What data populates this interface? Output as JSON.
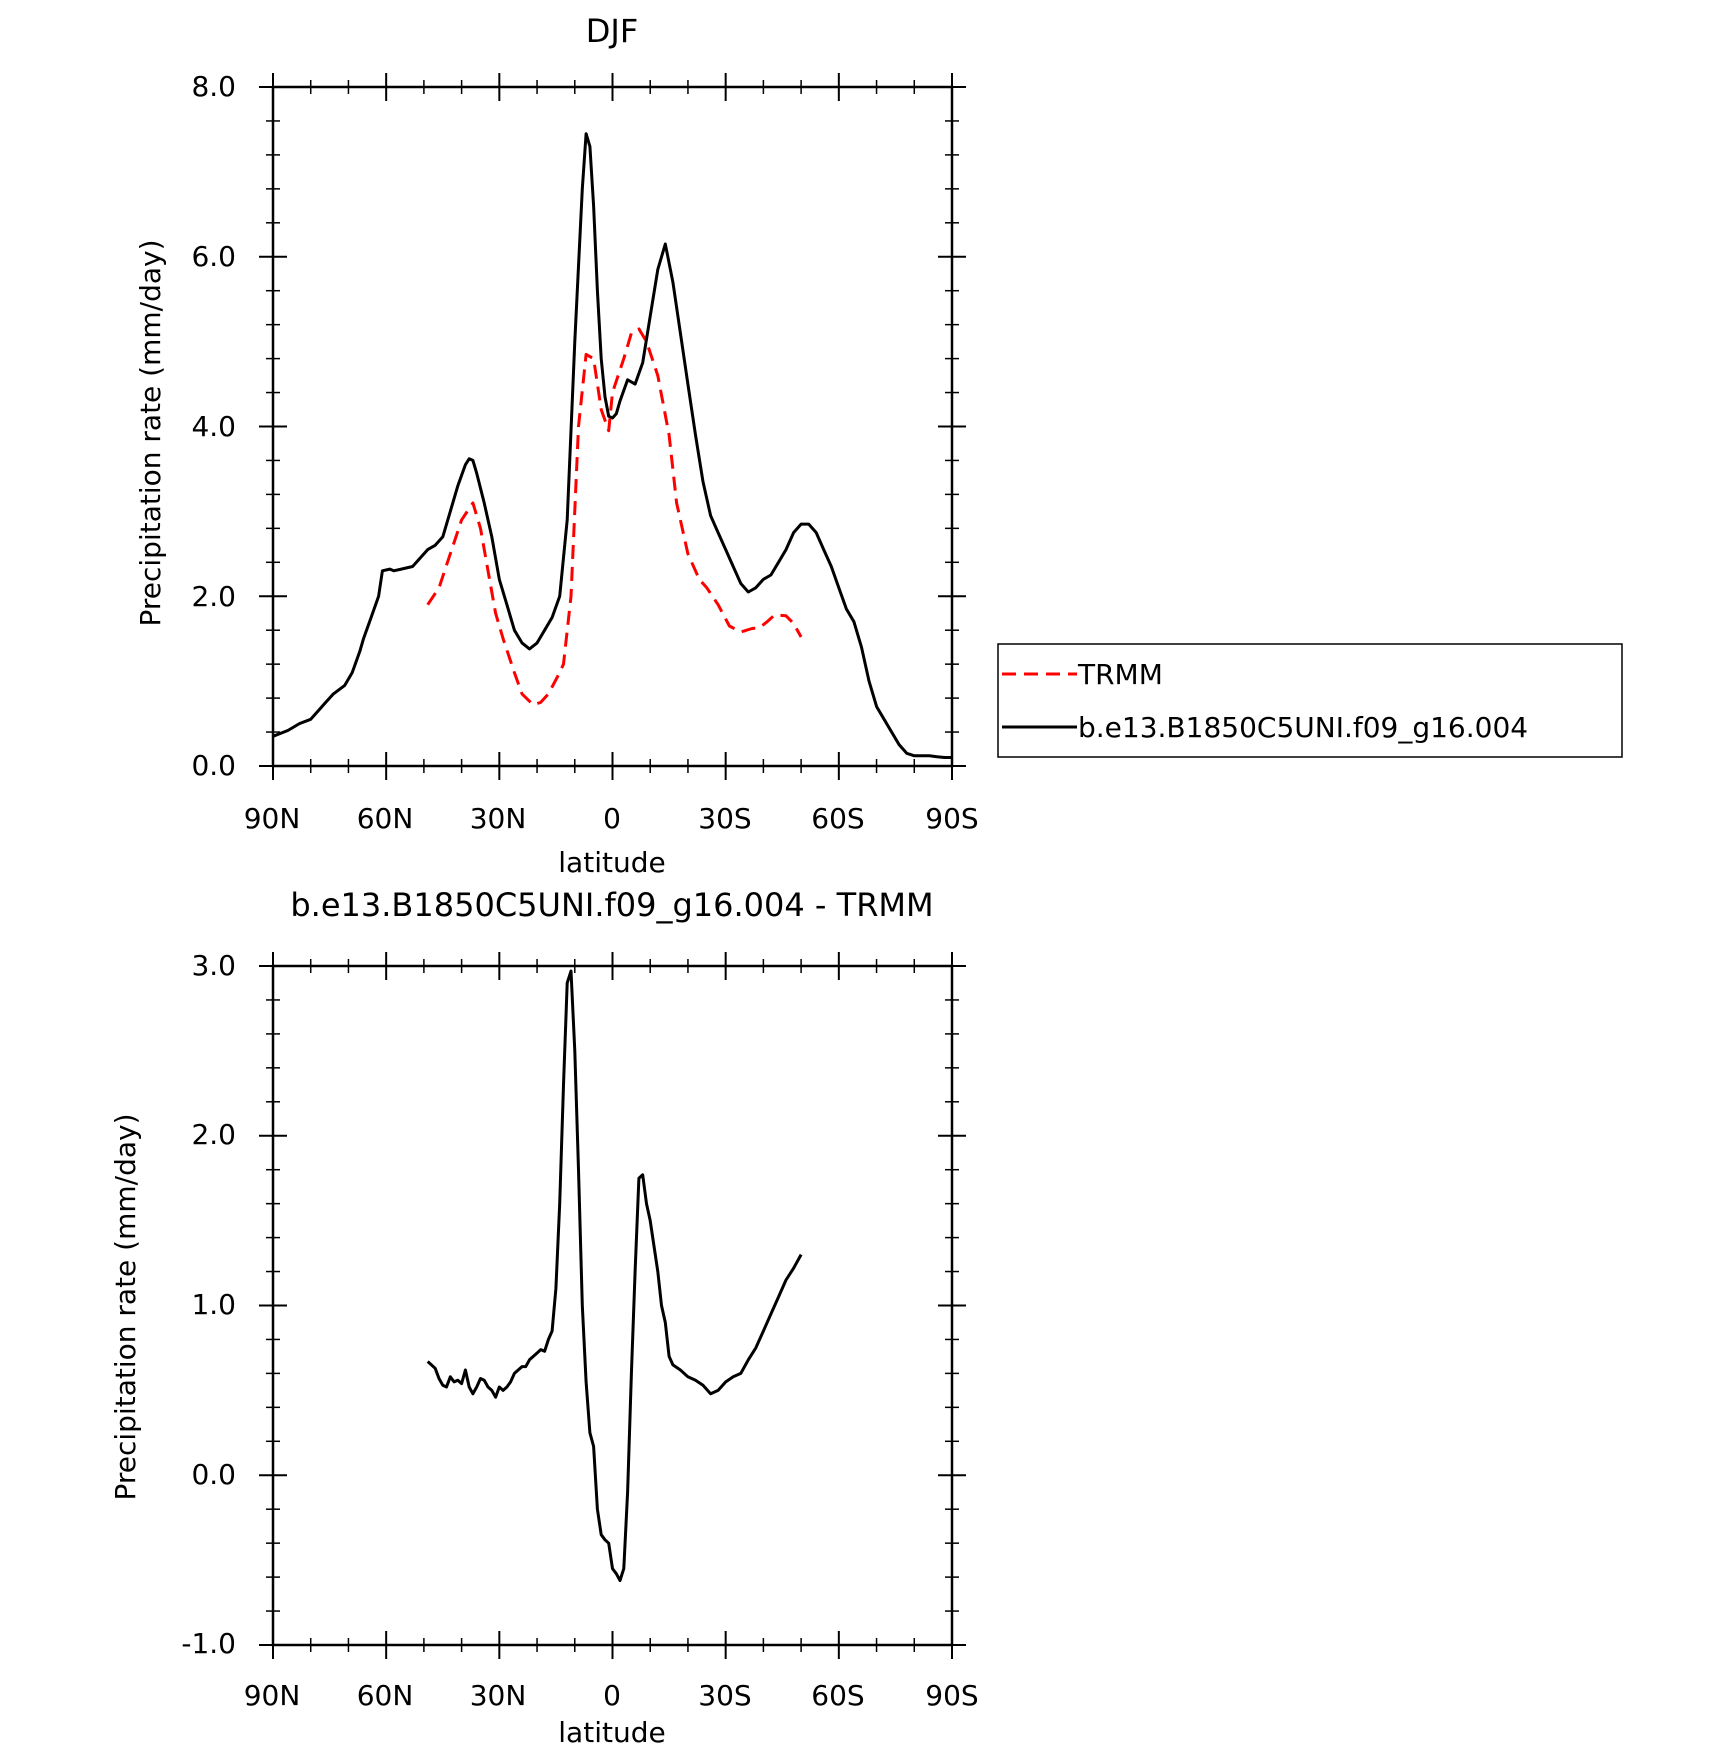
{
  "chart_data": [
    {
      "type": "line",
      "title": "DJF",
      "xlabel": "latitude",
      "ylabel": "Precipitation rate (mm/day)",
      "xlim": [
        -90,
        90
      ],
      "ylim": [
        0,
        8
      ],
      "x_ticks": [
        -90,
        -60,
        -30,
        0,
        30,
        60,
        90
      ],
      "x_tick_labels": [
        "90N",
        "60N",
        "30N",
        "0",
        "30S",
        "60S",
        "90S"
      ],
      "y_ticks": [
        0,
        2,
        4,
        6,
        8
      ],
      "y_tick_labels": [
        "0.0",
        "2.0",
        "4.0",
        "6.0",
        "8.0"
      ],
      "legend": {
        "placement": "right",
        "entries": [
          "TRMM",
          "b.e13.B1850C5UNI.f09_g16.004"
        ]
      },
      "series": [
        {
          "name": "TRMM",
          "color": "#ff0000",
          "style": "dashed",
          "x": [
            -49,
            -46,
            -43,
            -40,
            -37,
            -35,
            -33,
            -31,
            -29,
            -26,
            -24,
            -21,
            -19,
            -17,
            -14,
            -13,
            -11,
            -9,
            -7,
            -5,
            -3,
            -1,
            0,
            3,
            5,
            7,
            9,
            12,
            15,
            17,
            20,
            23,
            25,
            28,
            31,
            34,
            37,
            39,
            41,
            43,
            46,
            48,
            50
          ],
          "y": [
            1.9,
            2.1,
            2.5,
            2.9,
            3.1,
            2.8,
            2.3,
            1.8,
            1.5,
            1.1,
            0.85,
            0.72,
            0.75,
            0.85,
            1.1,
            1.2,
            2.0,
            4.0,
            4.85,
            4.8,
            4.2,
            3.95,
            4.4,
            4.8,
            5.1,
            5.15,
            5.0,
            4.6,
            3.9,
            3.1,
            2.5,
            2.2,
            2.1,
            1.9,
            1.65,
            1.58,
            1.62,
            1.63,
            1.7,
            1.78,
            1.77,
            1.68,
            1.52
          ]
        },
        {
          "name": "b.e13.B1850C5UNI.f09_g16.004",
          "color": "#000000",
          "style": "solid",
          "x": [
            -90,
            -86,
            -83,
            -80,
            -78,
            -76,
            -74,
            -71,
            -69,
            -67,
            -66,
            -64,
            -62,
            -61,
            -59,
            -58,
            -56,
            -53,
            -51,
            -49,
            -47,
            -45,
            -43,
            -41,
            -39,
            -38,
            -37,
            -36,
            -34,
            -32,
            -30,
            -28,
            -26,
            -24,
            -22,
            -20,
            -18,
            -16,
            -14,
            -12,
            -10,
            -8,
            -7,
            -6,
            -5,
            -4,
            -3,
            -2,
            -1,
            0,
            1,
            2,
            4,
            6,
            8,
            10,
            12,
            14,
            16,
            18,
            20,
            22,
            24,
            26,
            28,
            30,
            32,
            34,
            36,
            38,
            40,
            42,
            44,
            46,
            48,
            50,
            52,
            54,
            56,
            58,
            60,
            62,
            64,
            66,
            68,
            70,
            72,
            74,
            76,
            78,
            80,
            82,
            84,
            86,
            88,
            90
          ],
          "y": [
            0.35,
            0.42,
            0.5,
            0.55,
            0.65,
            0.75,
            0.85,
            0.95,
            1.1,
            1.35,
            1.5,
            1.75,
            2.0,
            2.3,
            2.32,
            2.3,
            2.32,
            2.35,
            2.45,
            2.55,
            2.6,
            2.7,
            3.0,
            3.3,
            3.55,
            3.62,
            3.6,
            3.45,
            3.1,
            2.7,
            2.2,
            1.9,
            1.6,
            1.45,
            1.38,
            1.45,
            1.6,
            1.75,
            2.0,
            2.9,
            5.0,
            6.8,
            7.45,
            7.3,
            6.6,
            5.6,
            4.8,
            4.35,
            4.12,
            4.1,
            4.15,
            4.3,
            4.55,
            4.5,
            4.75,
            5.3,
            5.85,
            6.15,
            5.7,
            5.1,
            4.5,
            3.9,
            3.35,
            2.95,
            2.75,
            2.55,
            2.35,
            2.15,
            2.05,
            2.1,
            2.2,
            2.25,
            2.4,
            2.55,
            2.75,
            2.85,
            2.85,
            2.75,
            2.55,
            2.35,
            2.1,
            1.85,
            1.7,
            1.4,
            1.0,
            0.7,
            0.55,
            0.4,
            0.25,
            0.15,
            0.12,
            0.12,
            0.12,
            0.11,
            0.1,
            0.1
          ]
        }
      ]
    },
    {
      "type": "line",
      "title": "b.e13.B1850C5UNI.f09_g16.004 - TRMM",
      "xlabel": "latitude",
      "ylabel": "Precipitation rate (mm/day)",
      "xlim": [
        -90,
        90
      ],
      "ylim": [
        -1,
        3
      ],
      "x_ticks": [
        -90,
        -60,
        -30,
        0,
        30,
        60,
        90
      ],
      "x_tick_labels": [
        "90N",
        "60N",
        "30N",
        "0",
        "30S",
        "60S",
        "90S"
      ],
      "y_ticks": [
        -1,
        0,
        1,
        2,
        3
      ],
      "y_tick_labels": [
        "-1.0",
        "0.0",
        "1.0",
        "2.0",
        "3.0"
      ],
      "series": [
        {
          "name": "b.e13.B1850C5UNI.f09_g16.004 - TRMM",
          "color": "#000000",
          "style": "solid",
          "x": [
            -49,
            -47,
            -46,
            -45,
            -44,
            -43,
            -42,
            -41,
            -40,
            -39,
            -38,
            -37,
            -36,
            -35,
            -34,
            -33,
            -32,
            -31,
            -30,
            -29,
            -28,
            -27,
            -26,
            -25,
            -24,
            -23,
            -22,
            -21,
            -20,
            -19,
            -18,
            -17,
            -16,
            -15,
            -14,
            -13,
            -12,
            -11,
            -10,
            -9,
            -8,
            -7,
            -6,
            -5,
            -4,
            -3,
            -2,
            -1,
            0,
            1,
            2,
            3,
            4,
            5,
            6,
            7,
            8,
            9,
            10,
            11,
            12,
            13,
            14,
            15,
            16,
            18,
            20,
            22,
            24,
            26,
            28,
            30,
            32,
            34,
            36,
            38,
            40,
            42,
            44,
            46,
            48,
            50
          ],
          "y": [
            0.67,
            0.63,
            0.57,
            0.53,
            0.52,
            0.58,
            0.55,
            0.56,
            0.54,
            0.62,
            0.52,
            0.48,
            0.52,
            0.57,
            0.56,
            0.52,
            0.5,
            0.46,
            0.52,
            0.5,
            0.52,
            0.55,
            0.6,
            0.62,
            0.64,
            0.64,
            0.68,
            0.7,
            0.72,
            0.74,
            0.73,
            0.8,
            0.85,
            1.1,
            1.6,
            2.3,
            2.9,
            2.97,
            2.5,
            1.8,
            1.0,
            0.55,
            0.25,
            0.17,
            -0.2,
            -0.35,
            -0.38,
            -0.4,
            -0.55,
            -0.58,
            -0.62,
            -0.55,
            -0.1,
            0.6,
            1.2,
            1.75,
            1.77,
            1.6,
            1.5,
            1.35,
            1.2,
            1.0,
            0.9,
            0.7,
            0.65,
            0.62,
            0.58,
            0.56,
            0.53,
            0.48,
            0.5,
            0.55,
            0.58,
            0.6,
            0.68,
            0.75,
            0.85,
            0.95,
            1.05,
            1.15,
            1.22,
            1.3
          ]
        }
      ]
    }
  ]
}
